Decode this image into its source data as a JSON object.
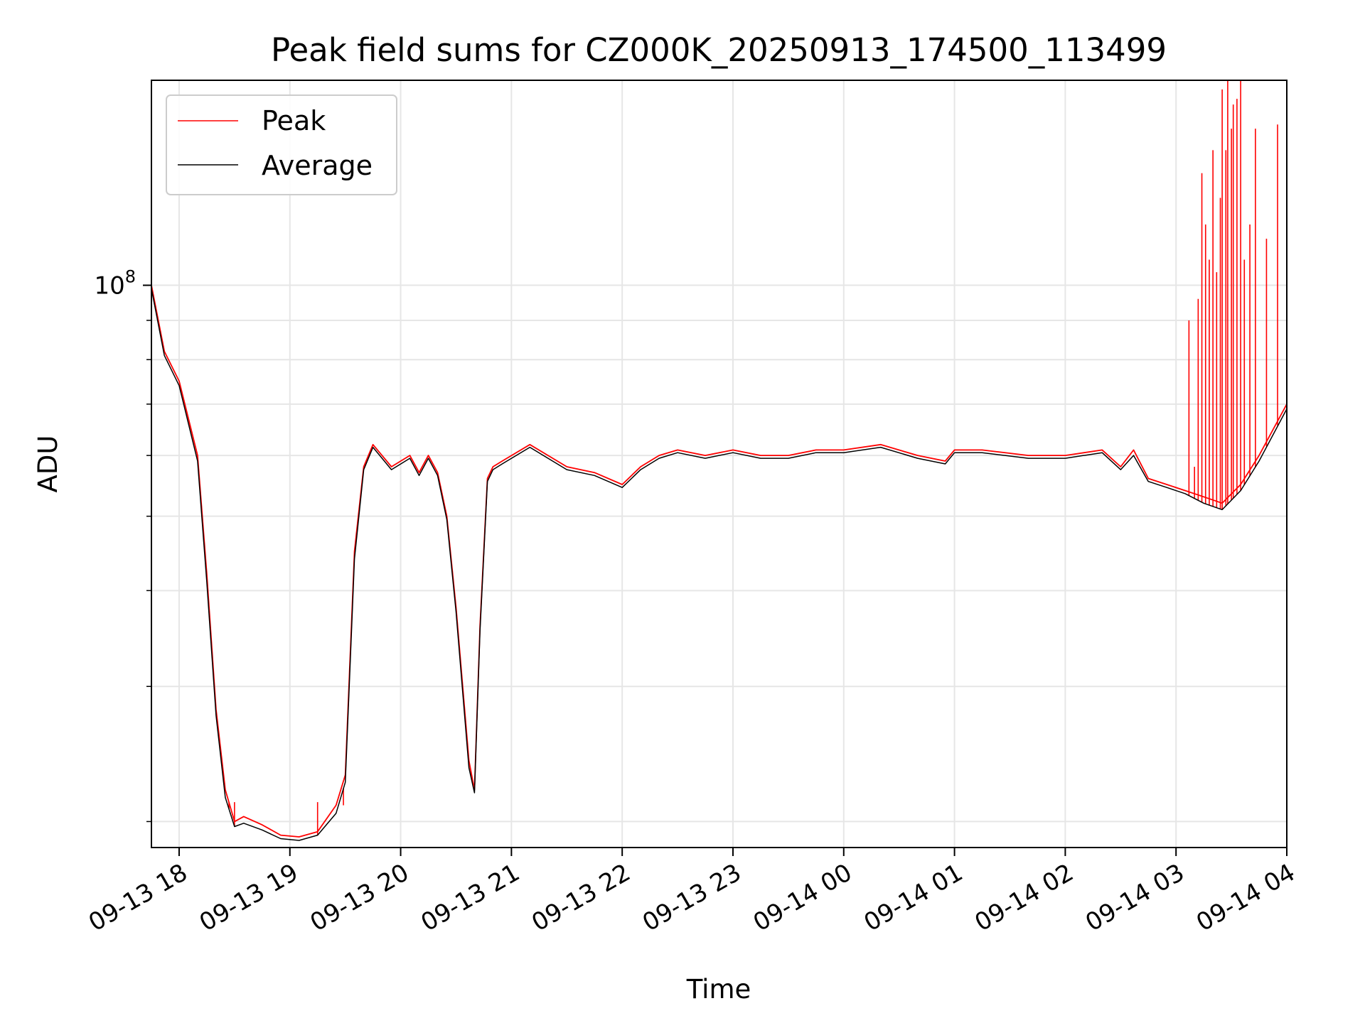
{
  "chart_data": {
    "type": "line",
    "title": "Peak field sums for CZ000K_20250913_174500_113499",
    "xlabel": "Time",
    "ylabel": "ADU",
    "yscale": "log",
    "ylim": [
      18500000,
      185000000
    ],
    "xlim": [
      "2025-09-13 17:45",
      "2025-09-14 04:00"
    ],
    "x_ticks": [
      "09-13 18",
      "09-13 19",
      "09-13 20",
      "09-13 21",
      "09-13 22",
      "09-13 23",
      "09-14 00",
      "09-14 01",
      "09-14 02",
      "09-14 03",
      "09-14 04"
    ],
    "y_tick_major": {
      "base": "10",
      "exponent": "8",
      "value": 100000000
    },
    "y_minor_ticks": [
      20000000,
      30000000,
      40000000,
      50000000,
      60000000,
      70000000,
      80000000,
      90000000,
      200000000
    ],
    "grid": true,
    "legend": "top-left",
    "series": [
      {
        "name": "Peak",
        "color": "#ff0000",
        "x": [
          "2025-09-13 17:45",
          "2025-09-13 17:52",
          "2025-09-13 18:00",
          "2025-09-13 18:10",
          "2025-09-13 18:15",
          "2025-09-13 18:20",
          "2025-09-13 18:25",
          "2025-09-13 18:30",
          "2025-09-13 18:35",
          "2025-09-13 18:45",
          "2025-09-13 18:55",
          "2025-09-13 19:05",
          "2025-09-13 19:15",
          "2025-09-13 19:25",
          "2025-09-13 19:30",
          "2025-09-13 19:35",
          "2025-09-13 19:40",
          "2025-09-13 19:45",
          "2025-09-13 19:55",
          "2025-09-13 20:05",
          "2025-09-13 20:10",
          "2025-09-13 20:15",
          "2025-09-13 20:20",
          "2025-09-13 20:25",
          "2025-09-13 20:30",
          "2025-09-13 20:37",
          "2025-09-13 20:40",
          "2025-09-13 20:43",
          "2025-09-13 20:47",
          "2025-09-13 20:50",
          "2025-09-13 20:55",
          "2025-09-13 21:10",
          "2025-09-13 21:30",
          "2025-09-13 21:45",
          "2025-09-13 22:00",
          "2025-09-13 22:10",
          "2025-09-13 22:20",
          "2025-09-13 22:30",
          "2025-09-13 22:45",
          "2025-09-13 23:00",
          "2025-09-13 23:15",
          "2025-09-13 23:30",
          "2025-09-13 23:45",
          "2025-09-14 00:00",
          "2025-09-14 00:20",
          "2025-09-14 00:40",
          "2025-09-14 00:55",
          "2025-09-14 01:00",
          "2025-09-14 01:15",
          "2025-09-14 01:40",
          "2025-09-14 02:00",
          "2025-09-14 02:20",
          "2025-09-14 02:30",
          "2025-09-14 02:37",
          "2025-09-14 02:45",
          "2025-09-14 02:55",
          "2025-09-14 03:05",
          "2025-09-14 03:15",
          "2025-09-14 03:25",
          "2025-09-14 03:35",
          "2025-09-14 03:45",
          "2025-09-14 04:00"
        ],
        "values": [
          100000000,
          82000000,
          75000000,
          60000000,
          42000000,
          28000000,
          22000000,
          20000000,
          20300000,
          19800000,
          19200000,
          19100000,
          19400000,
          21000000,
          23000000,
          45000000,
          58000000,
          62000000,
          58000000,
          60000000,
          57000000,
          60000000,
          57000000,
          50000000,
          38000000,
          24000000,
          22000000,
          36000000,
          56000000,
          58000000,
          59000000,
          62000000,
          58000000,
          57000000,
          55000000,
          58000000,
          60000000,
          61000000,
          60000000,
          61000000,
          60000000,
          60000000,
          61000000,
          61000000,
          62000000,
          60000000,
          59000000,
          61000000,
          61000000,
          60000000,
          60000000,
          61000000,
          58000000,
          61000000,
          56000000,
          55000000,
          54000000,
          53000000,
          52000000,
          55000000,
          60000000,
          70000000
        ],
        "spikes": [
          {
            "x": "2025-09-13 18:27",
            "value": 21200000
          },
          {
            "x": "2025-09-13 18:30",
            "value": 21200000
          },
          {
            "x": "2025-09-13 19:15",
            "value": 21200000
          },
          {
            "x": "2025-09-13 19:29",
            "value": 21000000
          },
          {
            "x": "2025-09-14 03:07",
            "value": 90000000
          },
          {
            "x": "2025-09-14 03:10",
            "value": 58000000
          },
          {
            "x": "2025-09-14 03:12",
            "value": 96000000
          },
          {
            "x": "2025-09-14 03:14",
            "value": 140000000
          },
          {
            "x": "2025-09-14 03:16",
            "value": 120000000
          },
          {
            "x": "2025-09-14 03:18",
            "value": 108000000
          },
          {
            "x": "2025-09-14 03:20",
            "value": 150000000
          },
          {
            "x": "2025-09-14 03:22",
            "value": 104000000
          },
          {
            "x": "2025-09-14 03:24",
            "value": 130000000
          },
          {
            "x": "2025-09-14 03:25",
            "value": 180000000
          },
          {
            "x": "2025-09-14 03:27",
            "value": 150000000
          },
          {
            "x": "2025-09-14 03:28",
            "value": 185000000
          },
          {
            "x": "2025-09-14 03:30",
            "value": 160000000
          },
          {
            "x": "2025-09-14 03:31",
            "value": 172000000
          },
          {
            "x": "2025-09-14 03:33",
            "value": 175000000
          },
          {
            "x": "2025-09-14 03:35",
            "value": 185000000
          },
          {
            "x": "2025-09-14 03:37",
            "value": 108000000
          },
          {
            "x": "2025-09-14 03:40",
            "value": 120000000
          },
          {
            "x": "2025-09-14 03:43",
            "value": 160000000
          },
          {
            "x": "2025-09-14 03:49",
            "value": 115000000
          },
          {
            "x": "2025-09-14 03:55",
            "value": 162000000
          }
        ]
      },
      {
        "name": "Average",
        "color": "#000000",
        "x": [
          "2025-09-13 17:45",
          "2025-09-13 17:52",
          "2025-09-13 18:00",
          "2025-09-13 18:10",
          "2025-09-13 18:15",
          "2025-09-13 18:20",
          "2025-09-13 18:25",
          "2025-09-13 18:30",
          "2025-09-13 18:35",
          "2025-09-13 18:45",
          "2025-09-13 18:55",
          "2025-09-13 19:05",
          "2025-09-13 19:15",
          "2025-09-13 19:25",
          "2025-09-13 19:30",
          "2025-09-13 19:35",
          "2025-09-13 19:40",
          "2025-09-13 19:45",
          "2025-09-13 19:55",
          "2025-09-13 20:05",
          "2025-09-13 20:10",
          "2025-09-13 20:15",
          "2025-09-13 20:20",
          "2025-09-13 20:25",
          "2025-09-13 20:30",
          "2025-09-13 20:37",
          "2025-09-13 20:40",
          "2025-09-13 20:43",
          "2025-09-13 20:47",
          "2025-09-13 20:50",
          "2025-09-13 20:55",
          "2025-09-13 21:10",
          "2025-09-13 21:30",
          "2025-09-13 21:45",
          "2025-09-13 22:00",
          "2025-09-13 22:10",
          "2025-09-13 22:20",
          "2025-09-13 22:30",
          "2025-09-13 22:45",
          "2025-09-13 23:00",
          "2025-09-13 23:15",
          "2025-09-13 23:30",
          "2025-09-13 23:45",
          "2025-09-14 00:00",
          "2025-09-14 00:20",
          "2025-09-14 00:40",
          "2025-09-14 00:55",
          "2025-09-14 01:00",
          "2025-09-14 01:15",
          "2025-09-14 01:40",
          "2025-09-14 02:00",
          "2025-09-14 02:20",
          "2025-09-14 02:30",
          "2025-09-14 02:37",
          "2025-09-14 02:45",
          "2025-09-14 02:55",
          "2025-09-14 03:05",
          "2025-09-14 03:15",
          "2025-09-14 03:25",
          "2025-09-14 03:35",
          "2025-09-14 03:45",
          "2025-09-14 04:00"
        ],
        "values": [
          99000000,
          81000000,
          74000000,
          59000000,
          41000000,
          27500000,
          21500000,
          19700000,
          19900000,
          19500000,
          19000000,
          18900000,
          19200000,
          20500000,
          22500000,
          44000000,
          57500000,
          61500000,
          57500000,
          59500000,
          56500000,
          59500000,
          56500000,
          49500000,
          37500000,
          23500000,
          21800000,
          35500000,
          55500000,
          57500000,
          58500000,
          61500000,
          57500000,
          56500000,
          54500000,
          57500000,
          59500000,
          60500000,
          59500000,
          60500000,
          59500000,
          59500000,
          60500000,
          60500000,
          61500000,
          59500000,
          58500000,
          60500000,
          60500000,
          59500000,
          59500000,
          60500000,
          57500000,
          60000000,
          55500000,
          54500000,
          53500000,
          52000000,
          51000000,
          54000000,
          59000000,
          69000000
        ]
      }
    ]
  }
}
